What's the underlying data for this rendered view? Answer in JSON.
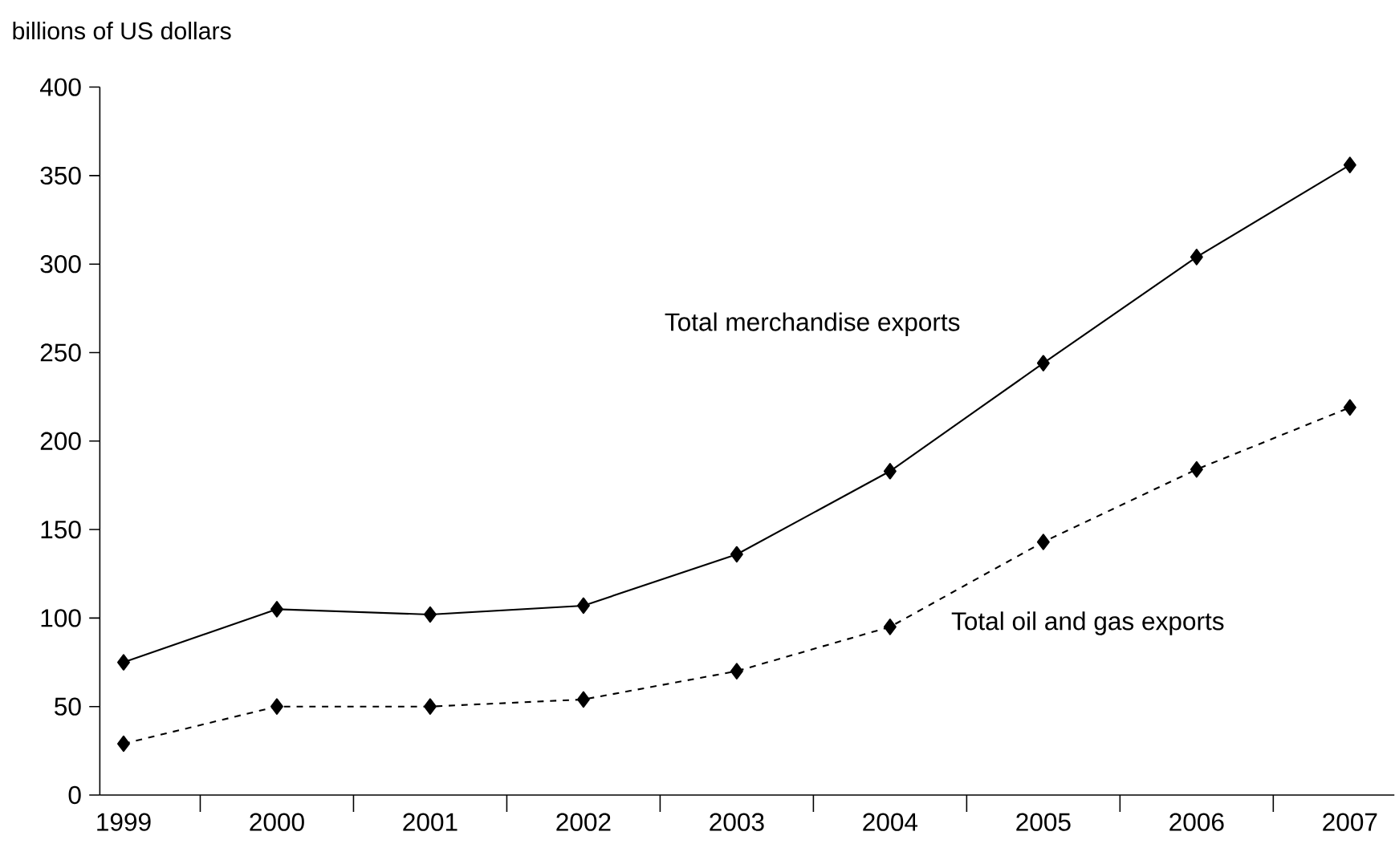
{
  "chart_data": {
    "type": "line",
    "ylabel": "billions of US dollars",
    "categories": [
      "1999",
      "2000",
      "2001",
      "2002",
      "2003",
      "2004",
      "2005",
      "2006",
      "2007"
    ],
    "series": [
      {
        "name": "Total merchandise exports",
        "color": "#000000",
        "line_style": "solid",
        "values": [
          75,
          105,
          102,
          107,
          136,
          183,
          244,
          304,
          356
        ]
      },
      {
        "name": "Total oil and gas exports",
        "color": "#000000",
        "line_style": "dashed",
        "values": [
          29,
          50,
          50,
          54,
          70,
          95,
          143,
          184,
          219
        ]
      }
    ],
    "ylim": [
      0,
      400
    ],
    "yticks": [
      0,
      50,
      100,
      150,
      200,
      250,
      300,
      350,
      400
    ],
    "grid": false,
    "marker": "diamond"
  }
}
